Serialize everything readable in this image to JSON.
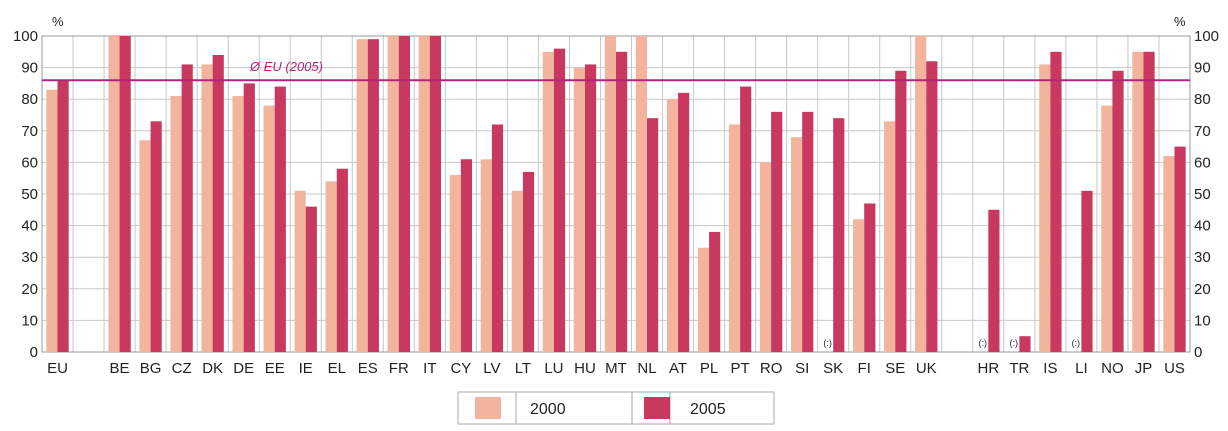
{
  "chart_data": {
    "type": "bar",
    "ylabel_left": "%",
    "ylabel_right": "%",
    "ylim": [
      0,
      100
    ],
    "yticks": [
      0,
      10,
      20,
      30,
      40,
      50,
      60,
      70,
      80,
      90,
      100
    ],
    "grid": true,
    "categories": [
      "EU",
      "",
      "BE",
      "BG",
      "CZ",
      "DK",
      "DE",
      "EE",
      "IE",
      "EL",
      "ES",
      "FR",
      "IT",
      "CY",
      "LV",
      "LT",
      "LU",
      "HU",
      "MT",
      "NL",
      "AT",
      "PL",
      "PT",
      "RO",
      "SI",
      "SK",
      "FI",
      "SE",
      "UK",
      "",
      "HR",
      "TR",
      "IS",
      "LI",
      "NO",
      "JP",
      "US"
    ],
    "series": [
      {
        "name": "2000",
        "color": "#f2b49c",
        "values": [
          83,
          null,
          100,
          67,
          81,
          91,
          81,
          78,
          51,
          54,
          99,
          100,
          100,
          56,
          61,
          51,
          95,
          90,
          100,
          100,
          80,
          33,
          72,
          60,
          68,
          null,
          42,
          73,
          100,
          null,
          null,
          null,
          91,
          null,
          78,
          95,
          62
        ]
      },
      {
        "name": "2005",
        "color": "#c8385f",
        "values": [
          86,
          null,
          100,
          73,
          91,
          94,
          85,
          84,
          46,
          58,
          99,
          100,
          100,
          61,
          72,
          57,
          96,
          91,
          95,
          74,
          82,
          38,
          84,
          76,
          76,
          74,
          47,
          89,
          92,
          null,
          45,
          5,
          95,
          51,
          89,
          95,
          65
        ]
      }
    ],
    "not_available_label": "(:)",
    "not_available_categories": [
      "SK",
      "HR",
      "TR",
      "LI"
    ],
    "reference_line": {
      "label": "Ø EU (2005)",
      "value": 86,
      "color": "#b4237d"
    },
    "legend": {
      "position": "bottom-center",
      "entries": [
        "2000",
        "2005"
      ]
    }
  }
}
